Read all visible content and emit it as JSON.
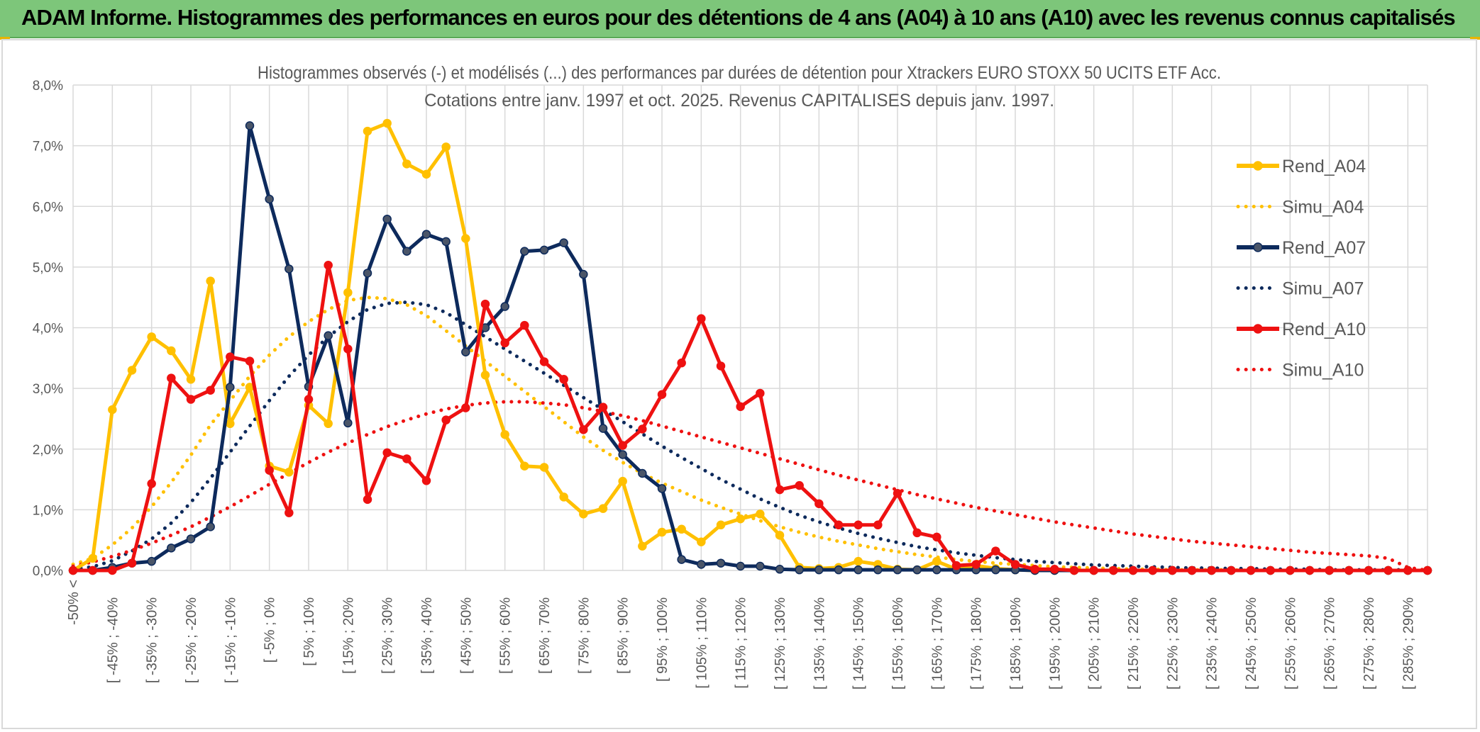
{
  "banner": {
    "title": "ADAM Informe. Histogrammes des performances en euros pour des détentions de 4 ans (A04) à 10 ans (A10) avec les revenus connus capitalisés"
  },
  "colors": {
    "banner_bg": "#7dc67a",
    "A04": "#ffc000",
    "A07": "#0d2a5c",
    "A10": "#ee1111",
    "grid": "#d9d9d9"
  },
  "chart_data": {
    "type": "line",
    "title": "Histogrammes observés (-) et modélisés (...) des performances par durées de détention pour Xtrackers EURO STOXX 50 UCITS ETF Acc.",
    "subtitle": "Cotations entre janv. 1997 et oct. 2025. Revenus CAPITALISES depuis janv. 1997.",
    "xlabel": "",
    "ylabel": "",
    "ylim": [
      0,
      8
    ],
    "y_ticks": [
      "0,0%",
      "1,0%",
      "2,0%",
      "3,0%",
      "4,0%",
      "5,0%",
      "6,0%",
      "7,0%",
      "8,0%"
    ],
    "grid": true,
    "legend_position": "right",
    "x_tick_labels": [
      "-50% <",
      "[ -45% ; -40%",
      "[ -35% ; -30%",
      "[ -25% ; -20%",
      "[ -15% ; -10%",
      "[ -5% ; 0%",
      "[ 5% ; 10%",
      "[ 15% ; 20%",
      "[ 25% ; 30%",
      "[ 35% ; 40%",
      "[ 45% ; 50%",
      "[ 55% ; 60%",
      "[ 65% ; 70%",
      "[ 75% ; 80%",
      "[ 85% ; 90%",
      "[ 95% ; 100%",
      "[ 105% ; 110%",
      "[ 115% ; 120%",
      "[ 125% ; 130%",
      "[ 135% ; 140%",
      "[ 145% ; 150%",
      "[ 155% ; 160%",
      "[ 165% ; 170%",
      "[ 175% ; 180%",
      "[ 185% ; 190%",
      "[ 195% ; 200%",
      "[ 205% ; 210%",
      "[ 215% ; 220%",
      "[ 225% ; 230%",
      "[ 235% ; 240%",
      "[ 245% ; 250%",
      "[ 255% ; 260%",
      "[ 265% ; 270%",
      "[ 275% ; 280%",
      "[ 285% ; 290%"
    ],
    "series": [
      {
        "name": "Rend_A04",
        "style": "solid",
        "markers": true,
        "color": "#ffc000",
        "values": [
          0,
          0.2,
          2.65,
          3.3,
          3.85,
          3.62,
          3.15,
          4.77,
          2.42,
          3.02,
          1.72,
          1.62,
          2.72,
          2.42,
          4.58,
          7.24,
          7.37,
          6.7,
          6.53,
          6.98,
          5.47,
          3.22,
          2.24,
          1.72,
          1.7,
          1.21,
          0.93,
          1.02,
          1.47,
          0.4,
          0.63,
          0.68,
          0.47,
          0.75,
          0.85,
          0.93,
          0.58,
          0.05,
          0.03,
          0.05,
          0.15,
          0.1,
          0.02,
          0.01,
          0.15,
          0.02,
          0.08,
          0.03,
          0.01,
          0,
          0,
          0,
          0,
          0,
          0,
          0,
          0,
          0,
          0,
          0,
          0,
          0,
          0,
          0,
          0,
          0,
          0,
          0,
          0,
          0
        ]
      },
      {
        "name": "Simu_A04",
        "style": "dotted",
        "markers": false,
        "color": "#ffc000",
        "values": [
          0.1,
          0.2,
          0.42,
          0.7,
          1.05,
          1.45,
          1.9,
          2.4,
          2.8,
          3.2,
          3.55,
          3.85,
          4.1,
          4.3,
          4.45,
          4.5,
          4.48,
          4.38,
          4.2,
          3.95,
          3.7,
          3.45,
          3.2,
          2.95,
          2.7,
          2.45,
          2.2,
          1.98,
          1.78,
          1.6,
          1.44,
          1.3,
          1.16,
          1.04,
          0.93,
          0.82,
          0.72,
          0.63,
          0.55,
          0.48,
          0.42,
          0.36,
          0.31,
          0.26,
          0.22,
          0.18,
          0.15,
          0.12,
          0.1,
          0.08,
          0.06,
          0.05,
          0.04,
          0.03,
          0.02,
          0.02,
          0.01,
          0.01,
          0.01,
          0.01,
          0,
          0,
          0,
          0,
          0,
          0,
          0,
          0,
          0,
          0
        ]
      },
      {
        "name": "Rend_A07",
        "style": "solid",
        "markers": true,
        "color": "#0d2a5c",
        "values": [
          0,
          0,
          0.05,
          0.12,
          0.15,
          0.37,
          0.52,
          0.72,
          3.02,
          7.33,
          6.12,
          4.97,
          3.03,
          3.87,
          2.43,
          4.9,
          5.79,
          5.26,
          5.54,
          5.42,
          3.6,
          4.0,
          4.35,
          5.26,
          5.28,
          5.4,
          4.88,
          2.34,
          1.91,
          1.6,
          1.35,
          0.18,
          0.1,
          0.12,
          0.07,
          0.07,
          0.02,
          0.01,
          0.01,
          0.01,
          0.01,
          0.01,
          0.01,
          0.01,
          0.01,
          0.01,
          0.01,
          0.01,
          0.01,
          0,
          0,
          0,
          0,
          0,
          0,
          0,
          0,
          0,
          0,
          0,
          0,
          0,
          0,
          0,
          0,
          0,
          0,
          0,
          0,
          0
        ]
      },
      {
        "name": "Simu_A07",
        "style": "dotted",
        "markers": false,
        "color": "#0d2a5c",
        "values": [
          0.02,
          0.06,
          0.16,
          0.32,
          0.52,
          0.78,
          1.12,
          1.52,
          1.95,
          2.38,
          2.8,
          3.2,
          3.55,
          3.85,
          4.1,
          4.3,
          4.4,
          4.42,
          4.38,
          4.25,
          4.05,
          3.85,
          3.65,
          3.45,
          3.25,
          3.05,
          2.85,
          2.65,
          2.45,
          2.25,
          2.05,
          1.86,
          1.68,
          1.5,
          1.34,
          1.18,
          1.04,
          0.91,
          0.8,
          0.7,
          0.61,
          0.53,
          0.46,
          0.39,
          0.34,
          0.29,
          0.25,
          0.21,
          0.18,
          0.15,
          0.13,
          0.11,
          0.09,
          0.08,
          0.07,
          0.06,
          0.05,
          0.04,
          0.04,
          0.03,
          0.03,
          0.02,
          0.02,
          0.02,
          0.01,
          0.01,
          0.01,
          0.01,
          0.01,
          0.01
        ]
      },
      {
        "name": "Rend_A10",
        "style": "solid",
        "markers": true,
        "color": "#ee1111",
        "values": [
          0,
          0,
          0,
          0.12,
          1.43,
          3.17,
          2.82,
          2.97,
          3.52,
          3.45,
          1.65,
          0.95,
          2.82,
          5.03,
          3.65,
          1.17,
          1.94,
          1.84,
          1.48,
          2.48,
          2.68,
          4.39,
          3.75,
          4.04,
          3.44,
          3.15,
          2.32,
          2.69,
          2.06,
          2.33,
          2.9,
          3.42,
          4.15,
          3.37,
          2.7,
          2.92,
          1.33,
          1.4,
          1.1,
          0.75,
          0.75,
          0.75,
          1.27,
          0.62,
          0.55,
          0.08,
          0.1,
          0.32,
          0.1,
          0.02,
          0.02,
          0,
          0,
          0,
          0,
          0,
          0,
          0,
          0,
          0,
          0,
          0,
          0,
          0,
          0,
          0,
          0,
          0,
          0,
          0
        ]
      },
      {
        "name": "Simu_A10",
        "style": "dotted",
        "markers": false,
        "color": "#ee1111",
        "values": [
          0.07,
          0.14,
          0.23,
          0.33,
          0.45,
          0.58,
          0.72,
          0.88,
          1.05,
          1.23,
          1.42,
          1.6,
          1.78,
          1.95,
          2.1,
          2.24,
          2.37,
          2.48,
          2.58,
          2.66,
          2.72,
          2.76,
          2.78,
          2.78,
          2.76,
          2.73,
          2.68,
          2.62,
          2.55,
          2.47,
          2.38,
          2.29,
          2.2,
          2.11,
          2.02,
          1.93,
          1.84,
          1.75,
          1.66,
          1.57,
          1.49,
          1.41,
          1.33,
          1.25,
          1.18,
          1.11,
          1.04,
          0.98,
          0.92,
          0.86,
          0.8,
          0.75,
          0.7,
          0.65,
          0.6,
          0.56,
          0.52,
          0.48,
          0.45,
          0.42,
          0.39,
          0.36,
          0.33,
          0.3,
          0.28,
          0.26,
          0.24,
          0.2,
          0.05,
          0
        ]
      }
    ]
  }
}
